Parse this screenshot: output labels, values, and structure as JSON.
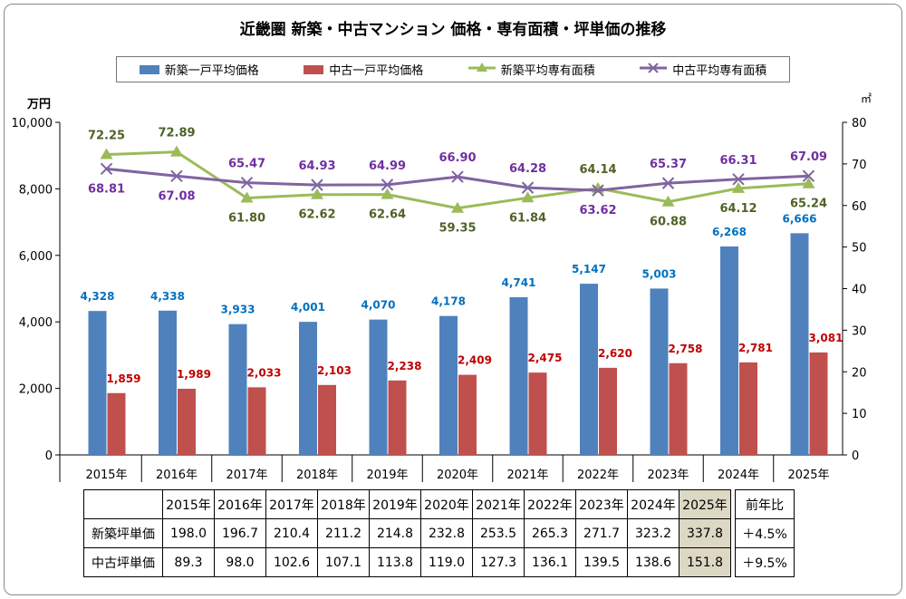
{
  "chart_data": {
    "type": "bar+line",
    "title": "近畿圏  新築・中古マンション  価格・専有面積・坪単価の推移",
    "categories": [
      "2015年",
      "2016年",
      "2017年",
      "2018年",
      "2019年",
      "2020年",
      "2021年",
      "2022年",
      "2023年",
      "2024年",
      "2025年"
    ],
    "left_axis": {
      "unit": "万円",
      "ylim": [
        0,
        10000
      ],
      "ticks": [
        "0",
        "2,000",
        "4,000",
        "6,000",
        "8,000",
        "10,000"
      ]
    },
    "right_axis": {
      "unit": "㎡",
      "ylim": [
        0,
        80
      ],
      "ticks": [
        "0",
        "10",
        "20",
        "30",
        "40",
        "50",
        "60",
        "70",
        "80"
      ]
    },
    "legend_position": "top",
    "series": [
      {
        "name": "新築一戸平均価格",
        "type": "bar",
        "axis": "left",
        "color": "#4f81bd",
        "label_color": "#0070c0",
        "values": [
          4328,
          4338,
          3933,
          4001,
          4070,
          4178,
          4741,
          5147,
          5003,
          6268,
          6666
        ],
        "labels": [
          "4,328",
          "4,338",
          "3,933",
          "4,001",
          "4,070",
          "4,178",
          "4,741",
          "5,147",
          "5,003",
          "6,268",
          "6,666"
        ]
      },
      {
        "name": "中古一戸平均価格",
        "type": "bar",
        "axis": "left",
        "color": "#c0504d",
        "label_color": "#c00000",
        "values": [
          1859,
          1989,
          2033,
          2103,
          2238,
          2409,
          2475,
          2620,
          2758,
          2781,
          3081
        ],
        "labels": [
          "1,859",
          "1,989",
          "2,033",
          "2,103",
          "2,238",
          "2,409",
          "2,475",
          "2,620",
          "2,758",
          "2,781",
          "3,081"
        ]
      },
      {
        "name": "新築平均専有面積",
        "type": "line",
        "marker": "triangle",
        "axis": "right",
        "color": "#9bbb59",
        "label_color": "#4f6228",
        "values": [
          72.25,
          72.89,
          61.8,
          62.62,
          62.64,
          59.35,
          61.84,
          64.14,
          60.88,
          64.12,
          65.24
        ],
        "labels": [
          "72.25",
          "72.89",
          "61.80",
          "62.62",
          "62.64",
          "59.35",
          "61.84",
          "64.14",
          "60.88",
          "64.12",
          "65.24"
        ]
      },
      {
        "name": "中古平均専有面積",
        "type": "line",
        "marker": "x",
        "axis": "right",
        "color": "#8064a2",
        "label_color": "#7030a0",
        "values": [
          68.81,
          67.08,
          65.47,
          64.93,
          64.99,
          66.9,
          64.28,
          63.62,
          65.37,
          66.31,
          67.09
        ],
        "labels": [
          "68.81",
          "67.08",
          "65.47",
          "64.93",
          "64.99",
          "66.90",
          "64.28",
          "63.62",
          "65.37",
          "66.31",
          "67.09"
        ]
      }
    ]
  },
  "table": {
    "header": [
      "",
      "2015年",
      "2016年",
      "2017年",
      "2018年",
      "2019年",
      "2020年",
      "2021年",
      "2022年",
      "2023年",
      "2024年",
      "2025年",
      "前年比"
    ],
    "rows": [
      {
        "label": "新築坪単価",
        "values": [
          "198.0",
          "196.7",
          "210.4",
          "211.2",
          "214.8",
          "232.8",
          "253.5",
          "265.3",
          "271.7",
          "323.2",
          "337.8"
        ],
        "change": "＋4.5%"
      },
      {
        "label": "中古坪単価",
        "values": [
          "89.3",
          "98.0",
          "102.6",
          "107.1",
          "113.8",
          "119.0",
          "127.3",
          "136.1",
          "139.5",
          "138.6",
          "151.8"
        ],
        "change": "＋9.5%"
      }
    ],
    "highlight_color": "#ddd8c4"
  }
}
